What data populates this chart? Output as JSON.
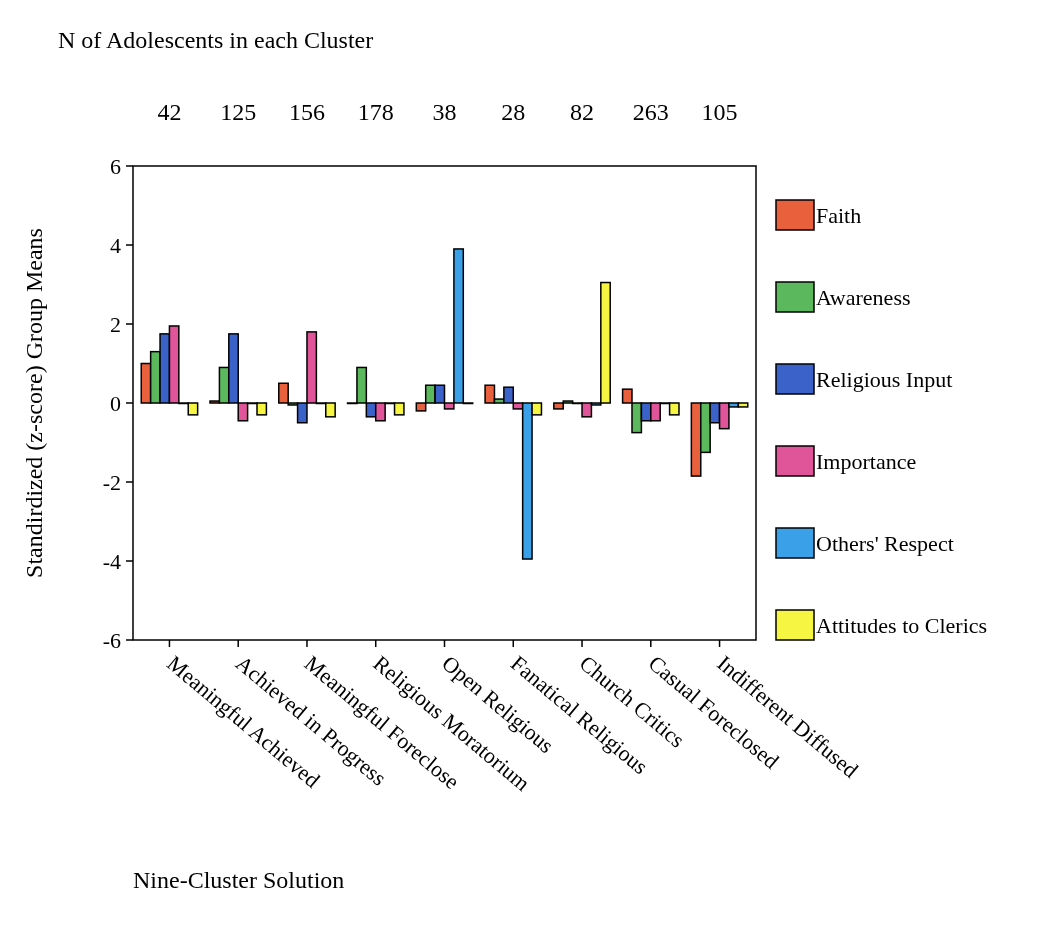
{
  "chart_data": {
    "type": "bar",
    "x2label": "N of Adolescents in each Cluster",
    "xlabel": "Nine-Cluster Solution",
    "ylabel": "Standirdized (z-score) Group Means",
    "categories": [
      "Meaningful Achieved",
      "Achieved in Progress",
      "Meaningful Foreclose",
      "Religious Moratorium",
      "Open Religious",
      "Fanatical Religious",
      "Church Critics",
      "Casual Foreclosed",
      "Indifferent Diffused"
    ],
    "series": [
      {
        "name": "Faith",
        "color": "#e8603c",
        "values": [
          1.0,
          0.05,
          0.5,
          0.0,
          -0.2,
          0.45,
          -0.15,
          0.35,
          -1.85
        ]
      },
      {
        "name": "Awareness",
        "color": "#5cb85c",
        "values": [
          1.3,
          0.9,
          -0.05,
          0.9,
          0.45,
          0.1,
          0.05,
          -0.75,
          -1.25
        ]
      },
      {
        "name": "Religious Input",
        "color": "#3a62c9",
        "values": [
          1.75,
          1.75,
          -0.5,
          -0.35,
          0.45,
          0.4,
          0.0,
          -0.45,
          -0.5
        ]
      },
      {
        "name": "Importance",
        "color": "#e0559a",
        "values": [
          1.95,
          -0.45,
          1.8,
          -0.45,
          -0.15,
          -0.15,
          -0.35,
          -0.45,
          -0.65
        ]
      },
      {
        "name": "Others' Respect",
        "color": "#3aa0e8",
        "values": [
          0.0,
          0.0,
          0.0,
          0.0,
          3.9,
          -3.95,
          -0.05,
          0.0,
          -0.1
        ]
      },
      {
        "name": "Attitudes to Clerics",
        "color": "#f5f542",
        "values": [
          -0.3,
          -0.3,
          -0.35,
          -0.3,
          0.0,
          -0.3,
          3.05,
          -0.3,
          -0.1
        ]
      }
    ],
    "ylim": [
      -6,
      6
    ],
    "yticks": [
      -6,
      -4,
      -2,
      0,
      2,
      4,
      6
    ],
    "grid": false,
    "legend": "right",
    "annotations": [
      "42",
      "125",
      "156",
      "178",
      "38",
      "28",
      "82",
      "263",
      "105"
    ]
  }
}
